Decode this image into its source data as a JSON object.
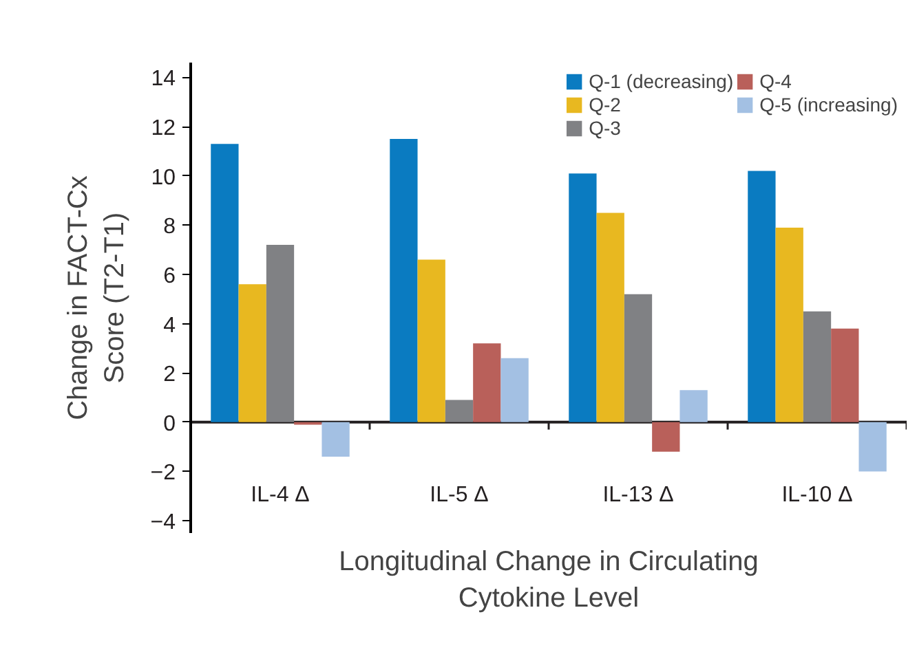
{
  "chart_data": {
    "type": "bar",
    "xlabel": "Longitudinal Change in Circulating\nCytokine Level",
    "ylabel": "Change in FACT-Cx\nScore (T2-T1)",
    "categories": [
      "IL-4 Δ",
      "IL-5 Δ",
      "IL-13 Δ",
      "IL-10 Δ"
    ],
    "series": [
      {
        "name": "Q-1 (decreasing)",
        "color": "#0a7bc1",
        "values": [
          11.3,
          11.5,
          10.1,
          10.2
        ]
      },
      {
        "name": "Q-2",
        "color": "#e8b820",
        "values": [
          5.6,
          6.6,
          8.5,
          7.9
        ]
      },
      {
        "name": "Q-3",
        "color": "#808184",
        "values": [
          7.2,
          0.9,
          5.2,
          4.5
        ]
      },
      {
        "name": "Q-4",
        "color": "#b9605a",
        "values": [
          -0.1,
          3.2,
          -1.2,
          3.8
        ]
      },
      {
        "name": "Q-5 (increasing)",
        "color": "#a3c0e3",
        "values": [
          -1.4,
          2.6,
          1.3,
          -2.0
        ]
      }
    ],
    "ylim": [
      -4.5,
      14.6
    ],
    "yticks": [
      {
        "value": -4,
        "label": "−4"
      },
      {
        "value": -2,
        "label": "−2"
      },
      0,
      2,
      4,
      6,
      8,
      10,
      12,
      14
    ],
    "legend": "top right"
  }
}
